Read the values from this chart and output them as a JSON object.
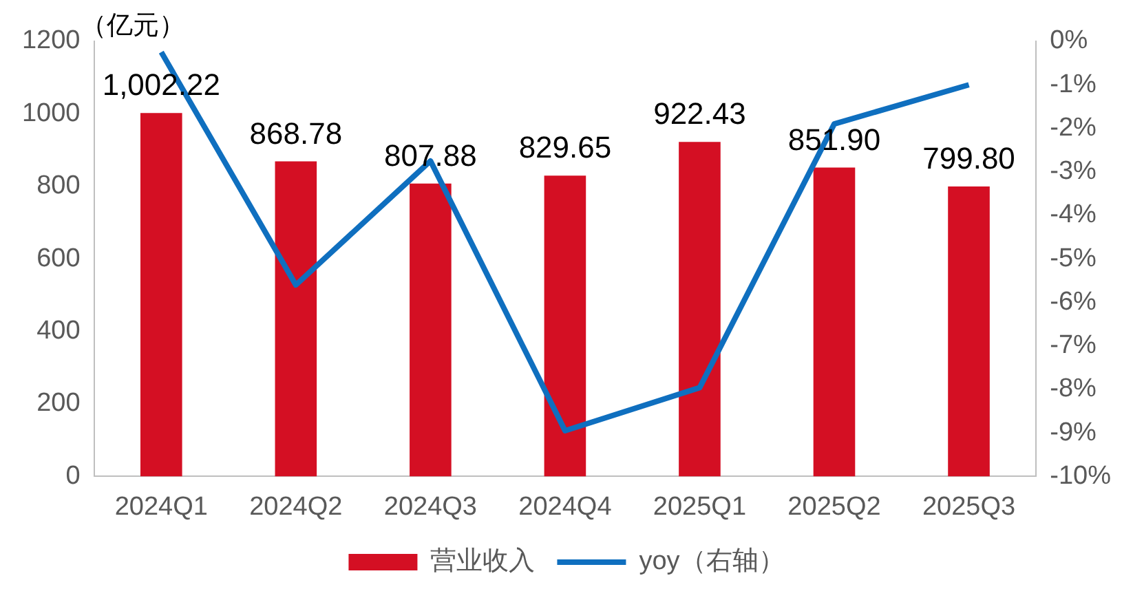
{
  "chart_data": {
    "type": "bar",
    "ylabel": "（亿元）",
    "categories": [
      "2024Q1",
      "2024Q2",
      "2024Q3",
      "2024Q4",
      "2025Q1",
      "2025Q2",
      "2025Q3"
    ],
    "series": [
      {
        "name": "营业收入",
        "color": "#d40f23",
        "values": [
          1002.22,
          868.78,
          807.88,
          829.65,
          922.43,
          851.9,
          799.8
        ],
        "value_labels": [
          "1,002.22",
          "868.78",
          "807.88",
          "829.65",
          "922.43",
          "851.90",
          "799.80"
        ]
      },
      {
        "name": "yoy（右轴）",
        "type": "line",
        "axis": "y2",
        "color": "#0f6fbf",
        "values": [
          -0.25,
          -5.6,
          -2.75,
          -8.95,
          -7.96,
          -1.9,
          -1.0
        ]
      }
    ],
    "ylim": [
      0,
      1200
    ],
    "yticks": [
      0,
      200,
      400,
      600,
      800,
      1000,
      1200
    ],
    "y2lim": [
      -10,
      0
    ],
    "y2ticks": [
      {
        "value": -10,
        "label": "-10%"
      },
      {
        "value": -9,
        "label": "-9%"
      },
      {
        "value": -8,
        "label": "-8%"
      },
      {
        "value": -7,
        "label": "-7%"
      },
      {
        "value": -6,
        "label": "-6%"
      },
      {
        "value": -5,
        "label": "-5%"
      },
      {
        "value": -4,
        "label": "-4%"
      },
      {
        "value": -3,
        "label": "-3%"
      },
      {
        "value": -2,
        "label": "-2%"
      },
      {
        "value": -1,
        "label": "-1%"
      },
      {
        "value": 0,
        "label": "0%"
      }
    ],
    "grid": false,
    "legend": "bottom",
    "marker": "none",
    "line_style": "solid"
  }
}
